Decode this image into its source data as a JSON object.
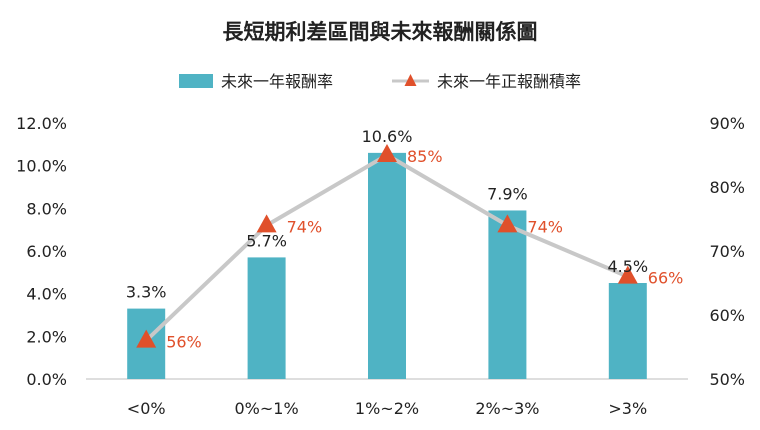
{
  "chart_data": {
    "type": "bar",
    "title": "長短期利差區間與未來報酬關係圖",
    "categories": [
      "<0%",
      "0%~1%",
      "1%~2%",
      "2%~3%",
      ">3%"
    ],
    "series": [
      {
        "name": "未來一年報酬率",
        "type": "bar",
        "axis": "left",
        "values": [
          3.3,
          5.7,
          10.6,
          7.9,
          4.5
        ],
        "labels": [
          "3.3%",
          "5.7%",
          "10.6%",
          "7.9%",
          "4.5%"
        ]
      },
      {
        "name": "未來一年正報酬積率",
        "type": "line",
        "axis": "right",
        "values": [
          56,
          74,
          85,
          74,
          66
        ],
        "labels": [
          "56%",
          "74%",
          "85%",
          "74%",
          "66%"
        ]
      }
    ],
    "y_left": {
      "range": [
        0,
        12
      ],
      "ticks": [
        0,
        2,
        4,
        6,
        8,
        10,
        12
      ],
      "tick_labels": [
        "0.0%",
        "2.0%",
        "4.0%",
        "6.0%",
        "8.0%",
        "10.0%",
        "12.0%"
      ]
    },
    "y_right": {
      "range": [
        50,
        90
      ],
      "ticks": [
        50,
        60,
        70,
        80,
        90
      ],
      "tick_labels": [
        "50%",
        "60%",
        "70%",
        "80%",
        "90%"
      ]
    },
    "legend": "top-center",
    "grid": false,
    "colors": {
      "bar": "#4FB3C4",
      "line": "#C8C8C8",
      "marker": "#E0502B",
      "point_label": "#E0502B",
      "text": "#222222",
      "axis": "#BDBDBD"
    }
  }
}
